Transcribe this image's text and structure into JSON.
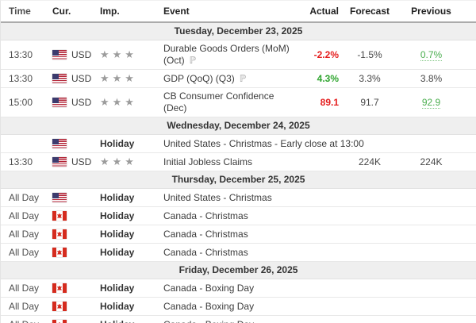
{
  "colors": {
    "negative": "#e51e1e",
    "positive": "#2fa52f",
    "revised_green": "#4bae4f",
    "band_bg": "#efefef",
    "text": "#4f4f4f"
  },
  "icons": {
    "star": "★",
    "preliminary": "ℙ"
  },
  "table": {
    "headers": {
      "time": "Time",
      "cur": "Cur.",
      "imp": "Imp.",
      "event": "Event",
      "actual": "Actual",
      "forecast": "Forecast",
      "previous": "Previous"
    }
  },
  "sections": [
    {
      "date": "Tuesday, December 23, 2025",
      "rows": [
        {
          "time": "13:30",
          "flag": "us",
          "currency": "USD",
          "stars": 3,
          "event": "Durable Goods Orders (MoM) (Oct)",
          "preliminary": true,
          "actual": "-2.2%",
          "actual_color": "red",
          "forecast": "-1.5%",
          "previous": "0.7%",
          "previous_revised": true
        },
        {
          "time": "13:30",
          "flag": "us",
          "currency": "USD",
          "stars": 3,
          "event": "GDP (QoQ) (Q3)",
          "preliminary": true,
          "actual": "4.3%",
          "actual_color": "green",
          "forecast": "3.3%",
          "previous": "3.8%",
          "previous_revised": false
        },
        {
          "time": "15:00",
          "flag": "us",
          "currency": "USD",
          "stars": 3,
          "event": "CB Consumer Confidence (Dec)",
          "preliminary": false,
          "actual": "89.1",
          "actual_color": "red",
          "forecast": "91.7",
          "previous": "92.9",
          "previous_revised": true
        }
      ]
    },
    {
      "date": "Wednesday, December 24, 2025",
      "rows": [
        {
          "time": "",
          "flag": "us",
          "holiday_label": "Holiday",
          "event": "United States - Christmas - Early close at 13:00"
        },
        {
          "time": "13:30",
          "flag": "us",
          "currency": "USD",
          "stars": 3,
          "event": "Initial Jobless Claims",
          "preliminary": false,
          "actual": "",
          "actual_color": "",
          "forecast": "224K",
          "previous": "224K",
          "previous_revised": false
        }
      ]
    },
    {
      "date": "Thursday, December 25, 2025",
      "rows": [
        {
          "time": "All Day",
          "flag": "us",
          "holiday_label": "Holiday",
          "event": "United States - Christmas"
        },
        {
          "time": "All Day",
          "flag": "ca",
          "holiday_label": "Holiday",
          "event": "Canada - Christmas"
        },
        {
          "time": "All Day",
          "flag": "ca",
          "holiday_label": "Holiday",
          "event": "Canada - Christmas"
        },
        {
          "time": "All Day",
          "flag": "ca",
          "holiday_label": "Holiday",
          "event": "Canada - Christmas"
        }
      ]
    },
    {
      "date": "Friday, December 26, 2025",
      "rows": [
        {
          "time": "All Day",
          "flag": "ca",
          "holiday_label": "Holiday",
          "event": "Canada - Boxing Day"
        },
        {
          "time": "All Day",
          "flag": "ca",
          "holiday_label": "Holiday",
          "event": "Canada - Boxing Day"
        },
        {
          "time": "All Day",
          "flag": "ca",
          "holiday_label": "Holiday",
          "event": "Canada - Boxing Day"
        }
      ]
    }
  ]
}
